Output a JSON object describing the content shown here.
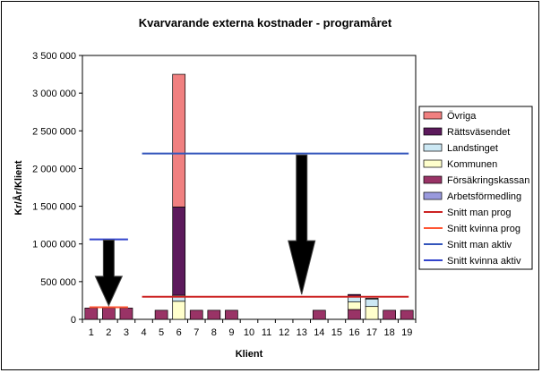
{
  "chart_data": {
    "type": "bar",
    "stacked": true,
    "title": "Kvarvarande externa kostnader - programåret",
    "xlabel": "Klient",
    "ylabel": "Kr/År/Klient",
    "ylim": [
      0,
      3500000
    ],
    "ytick_labels": [
      "0",
      "500 000",
      "1 000 000",
      "1 500 000",
      "2 000 000",
      "2 500 000",
      "3 000 000",
      "3 500 000"
    ],
    "ytick_values": [
      0,
      500000,
      1000000,
      1500000,
      2000000,
      2500000,
      3000000,
      3500000
    ],
    "categories": [
      "1",
      "2",
      "3",
      "4",
      "5",
      "6",
      "7",
      "8",
      "9",
      "10",
      "11",
      "12",
      "13",
      "14",
      "15",
      "16",
      "17",
      "18",
      "19"
    ],
    "grid": false,
    "legend_position": "right",
    "series": [
      {
        "name": "Arbetsförmedling",
        "color": "#9999dd",
        "values": [
          0,
          0,
          0,
          0,
          0,
          0,
          0,
          0,
          0,
          0,
          0,
          0,
          0,
          0,
          0,
          0,
          0,
          0,
          0
        ]
      },
      {
        "name": "Försäkringskassan",
        "color": "#993366",
        "values": [
          150000,
          150000,
          150000,
          0,
          120000,
          0,
          120000,
          120000,
          120000,
          0,
          0,
          0,
          0,
          120000,
          0,
          130000,
          0,
          120000,
          120000
        ]
      },
      {
        "name": "Kommunen",
        "color": "#ffffcc",
        "values": [
          0,
          0,
          0,
          0,
          0,
          240000,
          0,
          0,
          0,
          0,
          0,
          0,
          0,
          0,
          0,
          100000,
          170000,
          0,
          0
        ]
      },
      {
        "name": "Landstinget",
        "color": "#cce8f4",
        "values": [
          0,
          0,
          0,
          0,
          0,
          80000,
          0,
          0,
          0,
          0,
          0,
          0,
          0,
          0,
          0,
          80000,
          100000,
          0,
          0
        ]
      },
      {
        "name": "Rättsväsendet",
        "color": "#5c1a5c",
        "values": [
          0,
          0,
          0,
          0,
          0,
          1170000,
          0,
          0,
          0,
          0,
          0,
          0,
          0,
          0,
          0,
          20000,
          0,
          0,
          0
        ]
      },
      {
        "name": "Övriga",
        "color": "#f08080",
        "values": [
          0,
          0,
          0,
          0,
          0,
          1760000,
          0,
          0,
          0,
          0,
          0,
          0,
          0,
          0,
          0,
          0,
          10000,
          0,
          0
        ]
      }
    ],
    "lines": [
      {
        "name": "Snitt man prog",
        "color": "#cc2222",
        "value": 300000,
        "x_from": 4,
        "x_to": 19
      },
      {
        "name": "Snitt kvinna prog",
        "color": "#ff5533",
        "value": 160000,
        "x_from": 1,
        "x_to": 3
      },
      {
        "name": "Snitt man aktiv",
        "color": "#3355bb",
        "value": 2200000,
        "x_from": 4,
        "x_to": 19
      },
      {
        "name": "Snitt kvinna aktiv",
        "color": "#3344cc",
        "value": 1060000,
        "x_from": 1,
        "x_to": 3
      }
    ],
    "legend_order": [
      "Övriga",
      "Rättsväsendet",
      "Landstinget",
      "Kommunen",
      "Försäkringskassan",
      "Arbetsförmedling",
      "Snitt man prog",
      "Snitt kvinna prog",
      "Snitt man aktiv",
      "Snitt kvinna aktiv"
    ],
    "annotations": [
      {
        "type": "arrow",
        "direction": "down",
        "from_value": 1050000,
        "to_value": 180000,
        "at_category": "2"
      },
      {
        "type": "arrow",
        "direction": "down",
        "from_value": 2180000,
        "to_value": 330000,
        "at_category": "13"
      }
    ]
  },
  "colors": {
    "plot_background": "#ffffff",
    "axis": "#000000",
    "arrow": "#000000"
  }
}
